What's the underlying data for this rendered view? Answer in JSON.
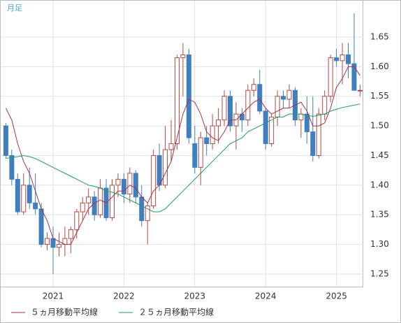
{
  "chart_data": {
    "type": "candlestick",
    "title": "月足",
    "categories": [
      null,
      null,
      null,
      null,
      null,
      null,
      null,
      null,
      "2021",
      null,
      null,
      null,
      null,
      null,
      null,
      null,
      null,
      null,
      null,
      null,
      "2022",
      null,
      null,
      null,
      null,
      null,
      null,
      null,
      null,
      null,
      null,
      null,
      "2023",
      null,
      null,
      null,
      null,
      null,
      null,
      null,
      null,
      null,
      null,
      null,
      "2024",
      null,
      null,
      null,
      null,
      null,
      null,
      null,
      null,
      null,
      null,
      null,
      "2025",
      null,
      null,
      null,
      null
    ],
    "open": [
      1.5,
      1.45,
      1.41,
      1.355,
      1.4,
      1.37,
      1.36,
      1.3,
      1.31,
      1.295,
      1.3,
      1.31,
      1.325,
      1.355,
      1.37,
      1.38,
      1.35,
      1.395,
      1.345,
      1.4,
      1.41,
      1.385,
      1.42,
      1.38,
      1.34,
      1.365,
      1.45,
      1.4,
      1.46,
      1.47,
      1.615,
      1.62,
      1.47,
      1.43,
      1.48,
      1.47,
      1.5,
      1.51,
      1.55,
      1.5,
      1.52,
      1.51,
      1.56,
      1.57,
      1.525,
      1.47,
      1.515,
      1.55,
      1.545,
      1.56,
      1.51,
      1.52,
      1.49,
      1.45,
      1.52,
      1.55,
      1.615,
      1.61,
      1.62,
      1.605,
      1.56
    ],
    "high": [
      1.505,
      1.46,
      1.42,
      1.42,
      1.43,
      1.42,
      1.37,
      1.32,
      1.33,
      1.32,
      1.33,
      1.33,
      1.36,
      1.38,
      1.395,
      1.39,
      1.41,
      1.41,
      1.41,
      1.42,
      1.42,
      1.43,
      1.425,
      1.4,
      1.37,
      1.46,
      1.47,
      1.5,
      1.51,
      1.62,
      1.64,
      1.63,
      1.5,
      1.49,
      1.5,
      1.52,
      1.53,
      1.56,
      1.56,
      1.54,
      1.53,
      1.57,
      1.58,
      1.595,
      1.53,
      1.52,
      1.56,
      1.56,
      1.57,
      1.565,
      1.53,
      1.55,
      1.55,
      1.53,
      1.56,
      1.62,
      1.63,
      1.64,
      1.64,
      1.69,
      1.57
    ],
    "low": [
      1.445,
      1.4,
      1.35,
      1.35,
      1.36,
      1.35,
      1.295,
      1.29,
      1.25,
      1.28,
      1.28,
      1.285,
      1.31,
      1.34,
      1.35,
      1.34,
      1.345,
      1.34,
      1.34,
      1.38,
      1.37,
      1.37,
      1.37,
      1.33,
      1.3,
      1.36,
      1.39,
      1.395,
      1.44,
      1.46,
      1.55,
      1.47,
      1.42,
      1.4,
      1.45,
      1.46,
      1.47,
      1.5,
      1.49,
      1.46,
      1.49,
      1.5,
      1.55,
      1.52,
      1.46,
      1.465,
      1.5,
      1.53,
      1.53,
      1.5,
      1.48,
      1.47,
      1.44,
      1.445,
      1.51,
      1.54,
      1.6,
      1.57,
      1.58,
      1.56,
      1.55
    ],
    "close": [
      1.45,
      1.41,
      1.355,
      1.4,
      1.37,
      1.36,
      1.3,
      1.31,
      1.295,
      1.3,
      1.31,
      1.325,
      1.355,
      1.37,
      1.38,
      1.35,
      1.395,
      1.345,
      1.4,
      1.41,
      1.385,
      1.42,
      1.38,
      1.34,
      1.365,
      1.45,
      1.4,
      1.46,
      1.47,
      1.615,
      1.62,
      1.48,
      1.43,
      1.48,
      1.47,
      1.5,
      1.51,
      1.55,
      1.5,
      1.52,
      1.51,
      1.56,
      1.57,
      1.525,
      1.47,
      1.515,
      1.55,
      1.545,
      1.56,
      1.51,
      1.52,
      1.49,
      1.45,
      1.52,
      1.55,
      1.615,
      1.61,
      1.62,
      1.605,
      1.56,
      1.56
    ],
    "up_color": "#b5493f",
    "down_color": "#3f7fbf",
    "series": [
      {
        "name": "５ヵ月移動平均線",
        "color": "#a8324a",
        "values": [
          1.53,
          1.51,
          1.47,
          1.44,
          1.42,
          1.39,
          1.36,
          1.34,
          1.31,
          1.305,
          1.3,
          1.3,
          1.32,
          1.34,
          1.36,
          1.37,
          1.375,
          1.37,
          1.38,
          1.39,
          1.39,
          1.4,
          1.395,
          1.38,
          1.37,
          1.39,
          1.4,
          1.42,
          1.44,
          1.48,
          1.52,
          1.545,
          1.54,
          1.52,
          1.49,
          1.48,
          1.475,
          1.49,
          1.51,
          1.51,
          1.52,
          1.53,
          1.54,
          1.545,
          1.53,
          1.52,
          1.525,
          1.53,
          1.53,
          1.535,
          1.54,
          1.525,
          1.5,
          1.5,
          1.505,
          1.53,
          1.565,
          1.58,
          1.6,
          1.6,
          1.585
        ]
      },
      {
        "name": "２５ヵ月移動平均線",
        "color": "#1f9a6c",
        "values": [
          1.445,
          1.447,
          1.448,
          1.45,
          1.448,
          1.445,
          1.44,
          1.435,
          1.43,
          1.425,
          1.42,
          1.415,
          1.41,
          1.405,
          1.4,
          1.398,
          1.395,
          1.39,
          1.388,
          1.385,
          1.38,
          1.375,
          1.37,
          1.365,
          1.36,
          1.355,
          1.355,
          1.36,
          1.37,
          1.38,
          1.39,
          1.4,
          1.41,
          1.42,
          1.43,
          1.44,
          1.45,
          1.46,
          1.47,
          1.475,
          1.48,
          1.49,
          1.495,
          1.5,
          1.505,
          1.51,
          1.515,
          1.515,
          1.52,
          1.52,
          1.52,
          1.518,
          1.516,
          1.518,
          1.52,
          1.525,
          1.528,
          1.531,
          1.533,
          1.535,
          1.537
        ]
      }
    ],
    "ylim": [
      1.2287,
      1.7125
    ],
    "yticks": [
      1.25,
      {
        "value": 1.3,
        "label": "1.30"
      },
      1.35,
      {
        "value": 1.4,
        "label": "1.40"
      },
      1.45,
      {
        "value": 1.5,
        "label": "1.50"
      },
      1.55,
      {
        "value": 1.6,
        "label": "1.60"
      },
      1.65
    ],
    "grid": true
  }
}
